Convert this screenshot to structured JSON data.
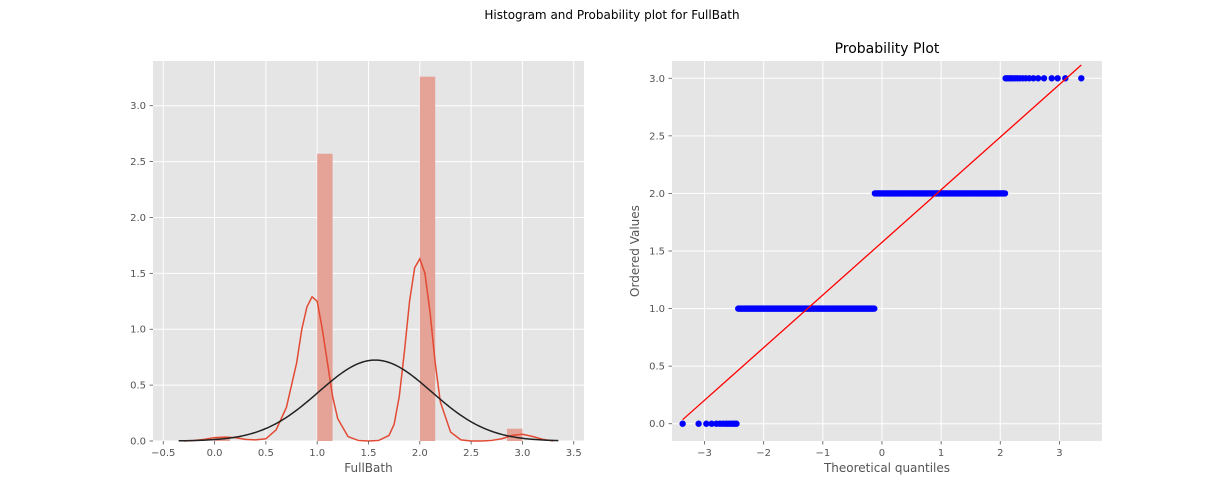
{
  "suptitle": "Histogram and Probability plot for FullBath",
  "colors": {
    "background": "#e5e5e5",
    "grid": "#ffffff",
    "hist_bar": "#e5a297",
    "kde_line": "#e24a33",
    "normal_fit": "#222222",
    "prob_points": "#0000ff",
    "prob_line": "#ff0000"
  },
  "chart_data": [
    {
      "type": "bar",
      "title": "",
      "xlabel": "FullBath",
      "ylabel": "",
      "xlim": [
        -0.6,
        3.6
      ],
      "ylim": [
        0,
        3.4
      ],
      "xticks": [
        -0.5,
        0.0,
        0.5,
        1.0,
        1.5,
        2.0,
        2.5,
        3.0,
        3.5
      ],
      "xtick_labels": [
        "−0.5",
        "0.0",
        "0.5",
        "1.0",
        "1.5",
        "2.0",
        "2.5",
        "3.0",
        "3.5"
      ],
      "yticks": [
        0.0,
        0.5,
        1.0,
        1.5,
        2.0,
        2.5,
        3.0
      ],
      "ytick_labels": [
        "0.0",
        "0.5",
        "1.0",
        "1.5",
        "2.0",
        "2.5",
        "3.0"
      ],
      "grid": true,
      "bars": [
        {
          "x0": 0.0,
          "x1": 0.15,
          "height": 0.03
        },
        {
          "x0": 1.0,
          "x1": 1.15,
          "height": 2.57
        },
        {
          "x0": 2.0,
          "x1": 2.15,
          "height": 3.26
        },
        {
          "x0": 2.85,
          "x1": 3.0,
          "height": 0.11
        }
      ],
      "kde": {
        "x": [
          -0.3,
          -0.2,
          -0.1,
          0.0,
          0.1,
          0.2,
          0.3,
          0.4,
          0.5,
          0.6,
          0.7,
          0.8,
          0.85,
          0.9,
          0.95,
          1.0,
          1.05,
          1.1,
          1.15,
          1.2,
          1.3,
          1.4,
          1.5,
          1.6,
          1.7,
          1.75,
          1.8,
          1.85,
          1.9,
          1.95,
          2.0,
          2.05,
          2.1,
          2.15,
          2.2,
          2.3,
          2.4,
          2.5,
          2.6,
          2.7,
          2.8,
          2.9,
          3.0,
          3.1,
          3.2,
          3.3
        ],
        "y": [
          0.0,
          0.005,
          0.015,
          0.03,
          0.035,
          0.03,
          0.015,
          0.01,
          0.02,
          0.1,
          0.3,
          0.7,
          1.0,
          1.2,
          1.29,
          1.25,
          1.0,
          0.7,
          0.4,
          0.2,
          0.04,
          0.005,
          0.0,
          0.005,
          0.05,
          0.15,
          0.4,
          0.8,
          1.25,
          1.55,
          1.63,
          1.5,
          1.15,
          0.7,
          0.35,
          0.08,
          0.01,
          0.0,
          0.0,
          0.005,
          0.02,
          0.05,
          0.06,
          0.04,
          0.015,
          0.0
        ]
      },
      "normal_fit": {
        "mean": 1.565,
        "std": 0.551,
        "xrange": [
          -0.35,
          3.35
        ]
      }
    },
    {
      "type": "scatter",
      "title": "Probability Plot",
      "xlabel": "Theoretical quantiles",
      "ylabel": "Ordered Values",
      "xlim": [
        -3.55,
        3.72
      ],
      "ylim": [
        -0.15,
        3.15
      ],
      "xticks": [
        -3,
        -2,
        -1,
        0,
        1,
        2,
        3
      ],
      "xtick_labels": [
        "−3",
        "−2",
        "−1",
        "0",
        "1",
        "2",
        "3"
      ],
      "yticks": [
        0.0,
        0.5,
        1.0,
        1.5,
        2.0,
        2.5,
        3.0
      ],
      "ytick_labels": [
        "0.0",
        "0.5",
        "1.0",
        "1.5",
        "2.0",
        "2.5",
        "3.0"
      ],
      "grid": true,
      "point_groups": [
        {
          "y": 0.0,
          "x": [
            -3.37,
            -3.1,
            -2.97,
            -2.88,
            -2.8,
            -2.74,
            -2.69,
            -2.64,
            -2.6,
            -2.56,
            -2.52,
            -2.49,
            -2.46
          ]
        },
        {
          "y": 1.0,
          "x_min": -2.43,
          "x_max": -0.13
        },
        {
          "y": 2.0,
          "x_min": -0.12,
          "x_max": 2.08
        },
        {
          "y": 3.0,
          "x": [
            2.09,
            2.12,
            2.15,
            2.18,
            2.21,
            2.25,
            2.29,
            2.33,
            2.38,
            2.43,
            2.49,
            2.56,
            2.64,
            2.74,
            2.87,
            2.97,
            3.1,
            3.37
          ]
        }
      ],
      "fit_line": {
        "x": [
          -3.37,
          3.37
        ],
        "y": [
          0.035,
          3.115
        ]
      }
    }
  ]
}
